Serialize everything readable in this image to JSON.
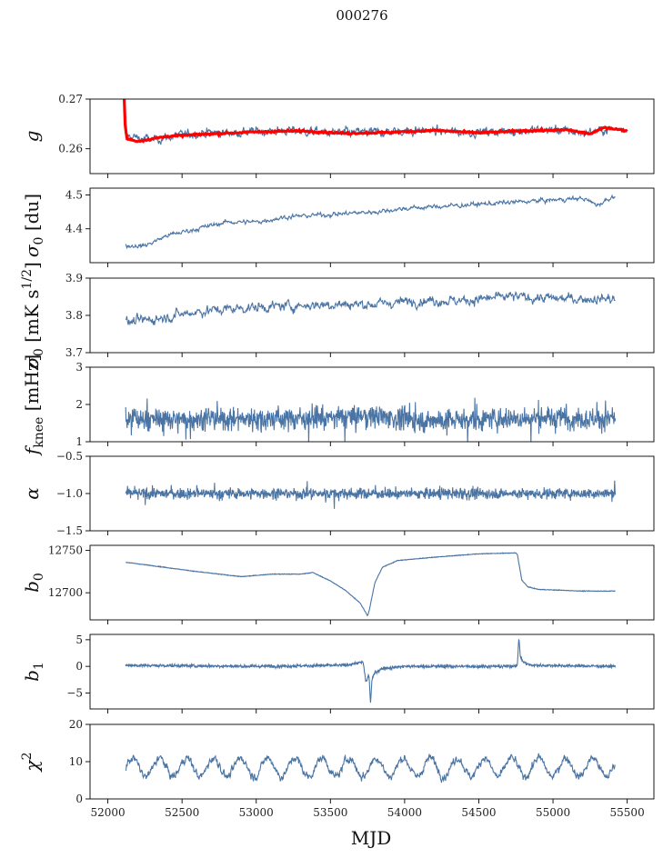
{
  "colors": {
    "series": "#4a74a4",
    "fit": "#ff0000",
    "axis": "#000000",
    "background": "#ffffff"
  },
  "chart_data": {
    "type": "line",
    "title": "000276",
    "xlabel": "MJD",
    "xlim": [
      51880,
      55680
    ],
    "xticks": [
      "52000",
      "52500",
      "53000",
      "53500",
      "54000",
      "54500",
      "55000",
      "55500"
    ],
    "panels": [
      {
        "name": "gain",
        "ylabel": "g",
        "ylim": [
          0.255,
          0.27
        ],
        "ytick_values": [
          0.26,
          0.27
        ],
        "ytick_labels": [
          "0.26",
          "0.27"
        ],
        "series": [
          {
            "name": "g",
            "color": "#4a74a4",
            "kind": "noisy",
            "x": [
              52120,
              52300,
              52600,
              52900,
              53200,
              53500,
              53800,
              54100,
              54400,
              54700,
              55000,
              55200,
              55400
            ],
            "y": [
              0.2625,
              0.2618,
              0.2632,
              0.2633,
              0.2637,
              0.2632,
              0.2633,
              0.2637,
              0.2633,
              0.2636,
              0.2638,
              0.2632,
              0.264
            ],
            "noise": 0.0008
          },
          {
            "name": "g fit",
            "color": "#ff0000",
            "kind": "thick",
            "x": [
              52110,
              52112,
              52118,
              52130,
              52200,
              52400,
              52700,
              53000,
              53300,
              53600,
              53900,
              54200,
              54500,
              54800,
              55100,
              55250,
              55350,
              55500
            ],
            "y": [
              0.2705,
              0.269,
              0.264,
              0.262,
              0.2615,
              0.2625,
              0.263,
              0.2634,
              0.2636,
              0.2631,
              0.2633,
              0.2637,
              0.2632,
              0.2636,
              0.2638,
              0.263,
              0.2643,
              0.2636
            ],
            "noise": 0.00015
          }
        ]
      },
      {
        "name": "sigma0",
        "ylabel": "σ0 [du]",
        "ylim": [
          4.3,
          4.52
        ],
        "ytick_values": [
          4.4,
          4.5
        ],
        "ytick_labels": [
          "4.4",
          "4.5"
        ],
        "series": [
          {
            "name": "sigma0",
            "color": "#4a74a4",
            "kind": "noisy",
            "x": [
              52120,
              52250,
              52400,
              52600,
              52800,
              53000,
              53200,
              53400,
              53600,
              53800,
              54000,
              54200,
              54400,
              54600,
              54800,
              55000,
              55200,
              55300,
              55420
            ],
            "y": [
              4.35,
              4.35,
              4.38,
              4.4,
              4.42,
              4.42,
              4.435,
              4.44,
              4.445,
              4.45,
              4.46,
              4.465,
              4.47,
              4.475,
              4.48,
              4.485,
              4.49,
              4.47,
              4.5
            ],
            "noise": 0.006
          }
        ]
      },
      {
        "name": "white-noise",
        "ylabel": "σ0 [mK s^1/2]",
        "ylim": [
          3.7,
          3.9
        ],
        "ytick_values": [
          3.7,
          3.8,
          3.9
        ],
        "ytick_labels": [
          "3.7",
          "3.8",
          "3.9"
        ],
        "series": [
          {
            "name": "sigma0 mK",
            "color": "#4a74a4",
            "kind": "noisy",
            "x": [
              52120,
              52300,
              52600,
              52900,
              53200,
              53500,
              53800,
              54100,
              54400,
              54700,
              55000,
              55200,
              55420
            ],
            "y": [
              3.78,
              3.79,
              3.81,
              3.82,
              3.825,
              3.83,
              3.83,
              3.84,
              3.84,
              3.85,
              3.845,
              3.845,
              3.845
            ],
            "noise": 0.012
          }
        ]
      },
      {
        "name": "fknee",
        "ylabel": "f_knee [mHz]",
        "ylim": [
          1,
          3
        ],
        "ytick_values": [
          1,
          2,
          3
        ],
        "ytick_labels": [
          "1",
          "2",
          "3"
        ],
        "series": [
          {
            "name": "fknee",
            "color": "#4a74a4",
            "kind": "spiky",
            "x": [
              52120,
              52500,
              53000,
              53500,
              53800,
              54100,
              54500,
              55000,
              55420
            ],
            "y": [
              1.6,
              1.6,
              1.62,
              1.65,
              1.7,
              1.55,
              1.6,
              1.65,
              1.6
            ],
            "noise": 0.25
          }
        ]
      },
      {
        "name": "alpha",
        "ylabel": "α",
        "ylim": [
          -1.5,
          -0.5
        ],
        "ytick_values": [
          -1.5,
          -1.0,
          -0.5
        ],
        "ytick_labels": [
          "−1.5",
          "−1.0",
          "−0.5"
        ],
        "series": [
          {
            "name": "alpha",
            "color": "#4a74a4",
            "kind": "spiky",
            "x": [
              52120,
              53000,
              54000,
              55000,
              55420
            ],
            "y": [
              -1.0,
              -1.0,
              -1.0,
              -1.0,
              -1.0
            ],
            "noise": 0.06
          }
        ]
      },
      {
        "name": "b0",
        "ylabel": "b0",
        "ylim": [
          12668,
          12756
        ],
        "ytick_values": [
          12700,
          12750
        ],
        "ytick_labels": [
          "12700",
          "12750"
        ],
        "series": [
          {
            "name": "b0",
            "color": "#4a74a4",
            "kind": "smooth",
            "x": [
              52120,
              52300,
              52600,
              52900,
              53100,
              53300,
              53380,
              53500,
              53600,
              53700,
              53750,
              53760,
              53800,
              53850,
              53950,
              54200,
              54500,
              54750,
              54760,
              54790,
              54830,
              54900,
              55200,
              55420
            ],
            "y": [
              12736,
              12732,
              12725,
              12719,
              12722,
              12722,
              12724,
              12714,
              12703,
              12688,
              12673,
              12678,
              12712,
              12730,
              12738,
              12742,
              12746,
              12747,
              12745,
              12715,
              12707,
              12704,
              12702,
              12702
            ],
            "noise": 0.3
          }
        ]
      },
      {
        "name": "b1",
        "ylabel": "b1",
        "ylim": [
          -8,
          6
        ],
        "ytick_values": [
          -5,
          0,
          5
        ],
        "ytick_labels": [
          "−5",
          "0",
          "5"
        ],
        "series": [
          {
            "name": "b1",
            "color": "#4a74a4",
            "kind": "smooth",
            "x": [
              52120,
              53000,
              53600,
              53720,
              53740,
              53760,
              53770,
              53780,
              53800,
              53850,
              54000,
              54700,
              54760,
              54770,
              54780,
              54800,
              54850,
              55420
            ],
            "y": [
              0.2,
              0.0,
              0.2,
              0.8,
              -3.0,
              -1.5,
              -7.0,
              -2.5,
              -1.2,
              -0.4,
              0.0,
              0.0,
              0.2,
              5.5,
              1.8,
              0.8,
              0.2,
              0.0
            ],
            "noise": 0.25
          }
        ]
      },
      {
        "name": "chi2",
        "ylabel": "χ²",
        "ylim": [
          0,
          20
        ],
        "ytick_values": [
          0,
          10,
          20
        ],
        "ytick_labels": [
          "0",
          "10",
          "20"
        ],
        "series": [
          {
            "name": "chi2",
            "color": "#4a74a4",
            "kind": "seasonal",
            "x": [
              52120,
              55420
            ],
            "y": [
              8.5,
              8.5
            ],
            "amplitude": 2.5,
            "period": 182.5,
            "noise": 0.8
          }
        ]
      }
    ]
  }
}
